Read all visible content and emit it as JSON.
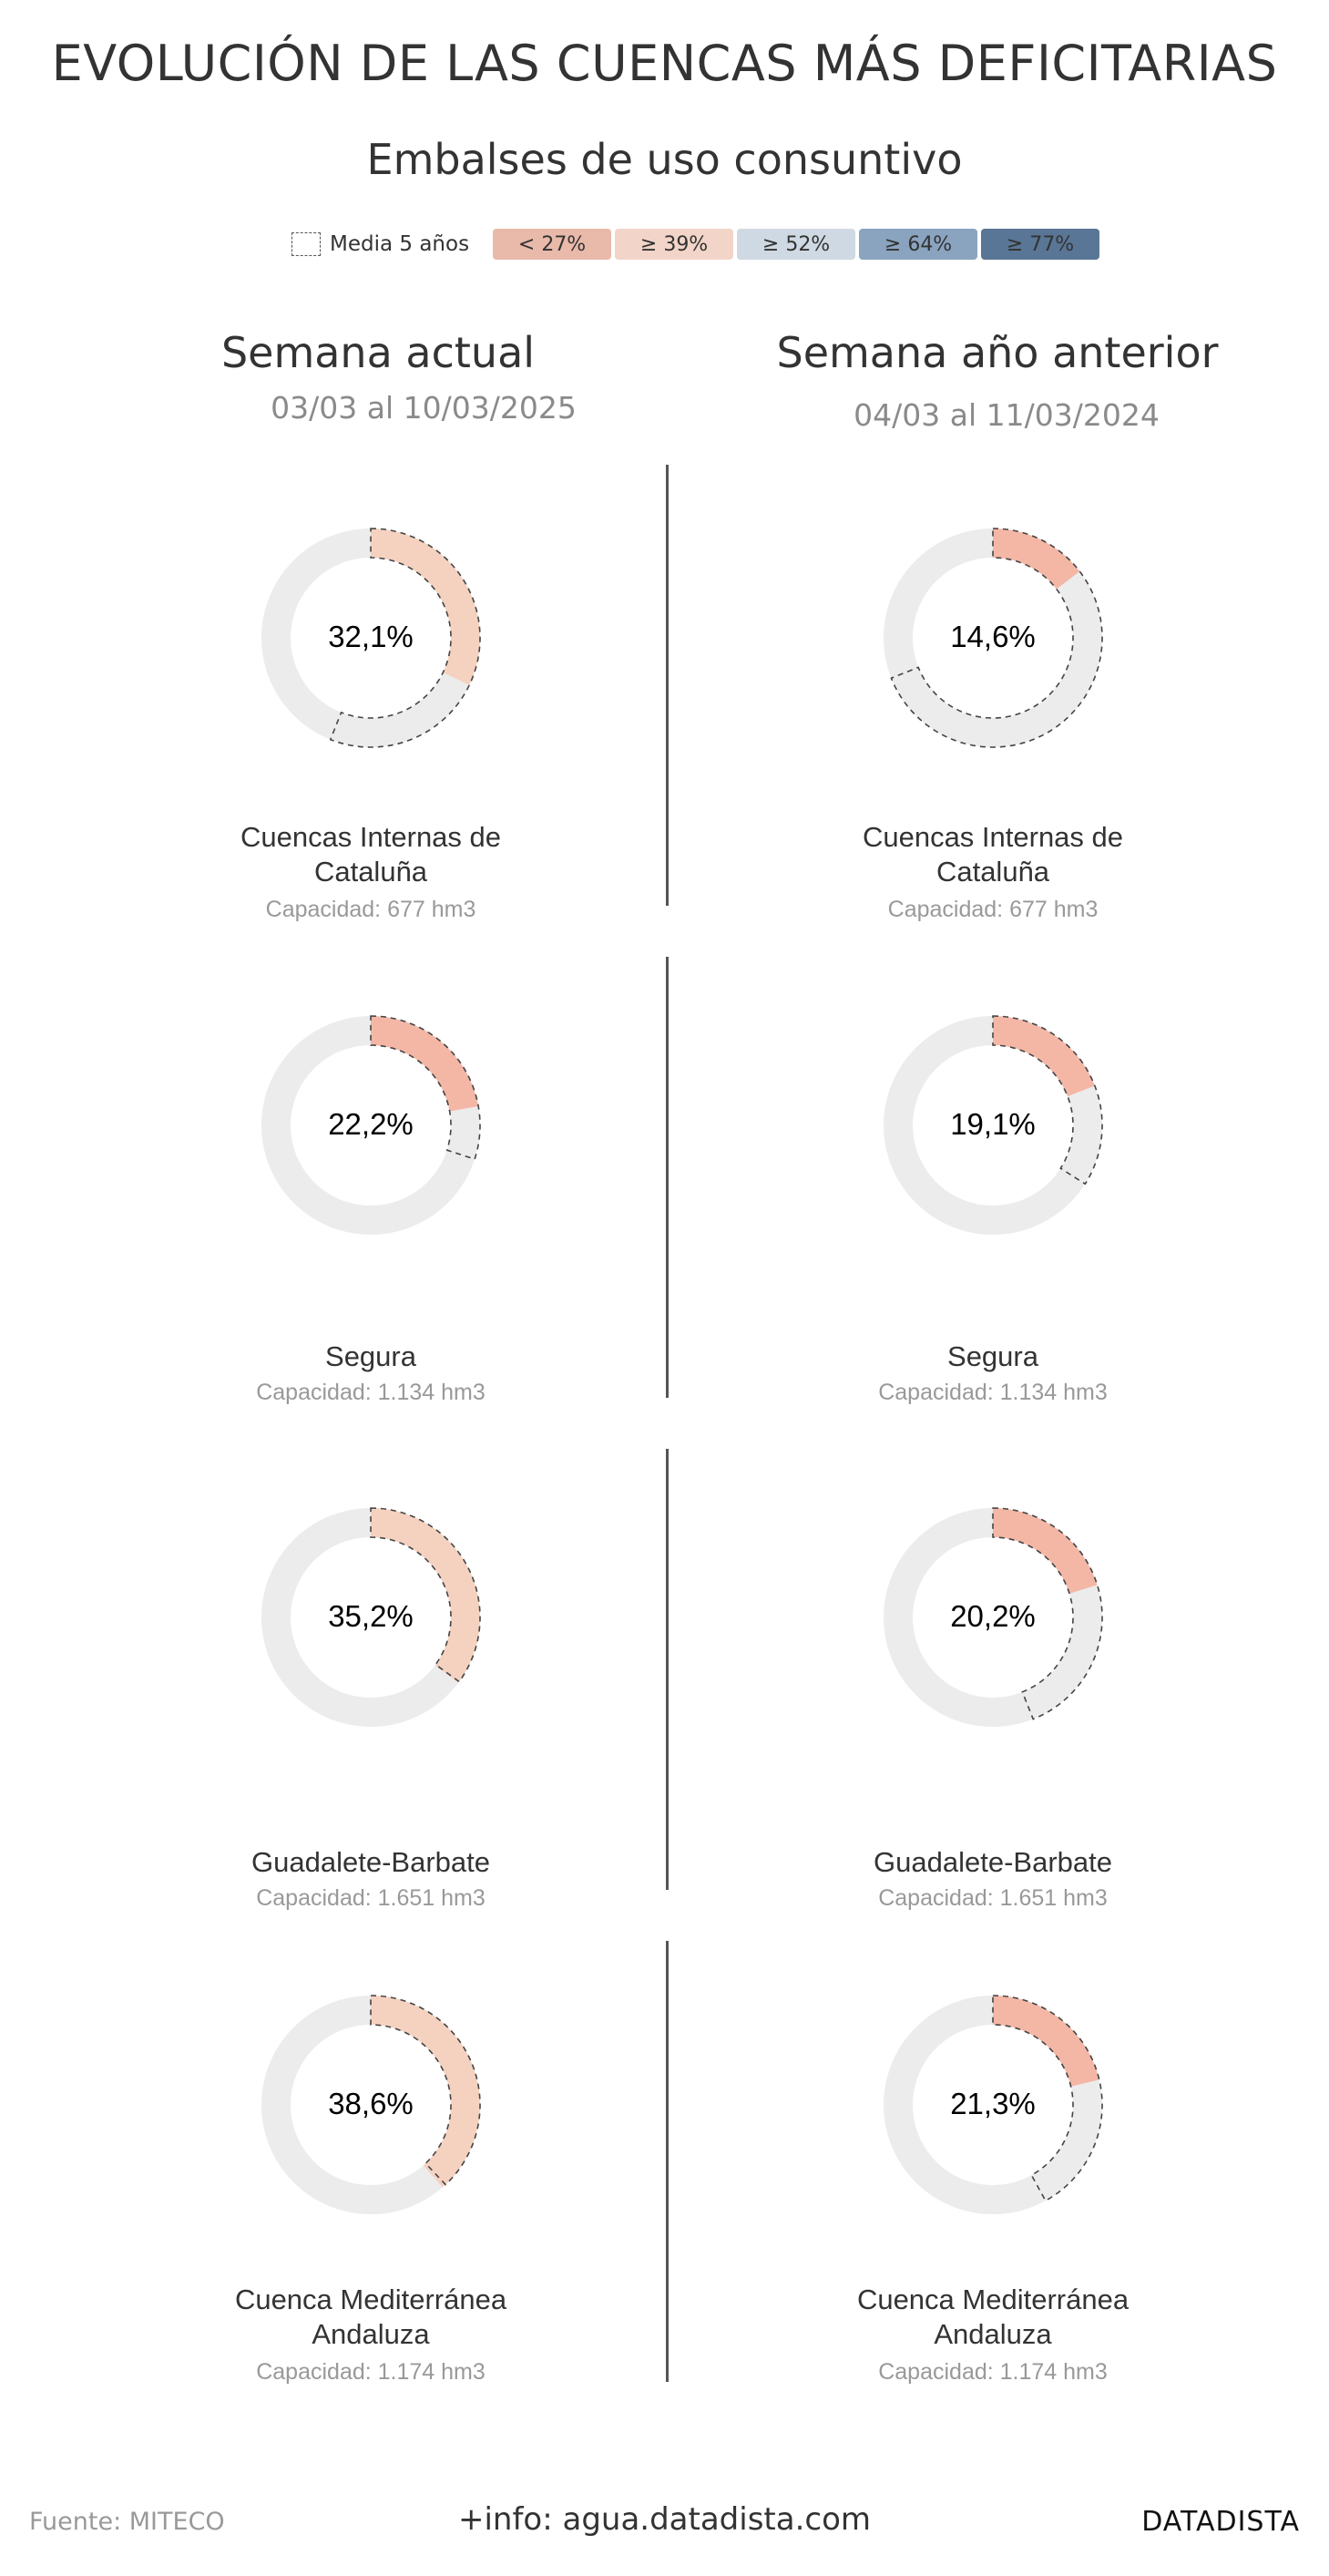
{
  "title": "EVOLUCIÓN DE LAS CUENCAS MÁS DEFICITARIAS",
  "subtitle": "Embalses de uso consuntivo",
  "legend": {
    "avg_label": "Media 5 años",
    "bins": [
      {
        "label": "< 27%",
        "color": "#e9b9aa"
      },
      {
        "label": "≥ 39%",
        "color": "#f2d5c8"
      },
      {
        "label": "≥ 52%",
        "color": "#cfd9e3"
      },
      {
        "label": "≥ 64%",
        "color": "#8aa4c0"
      },
      {
        "label": "≥ 77%",
        "color": "#5a7696"
      }
    ]
  },
  "columns": [
    {
      "heading": "Semana actual",
      "dates": "03/03 al 10/03/2025"
    },
    {
      "heading": "Semana año anterior",
      "dates": "04/03 al 11/03/2024"
    }
  ],
  "colors": {
    "track": "#ececec",
    "low": "#f4b7a6",
    "mid": "#f5d2c0",
    "avg_stroke": "#444444"
  },
  "chart_data": {
    "type": "donut",
    "value_unit": "% capacity filled",
    "series": [
      {
        "name": "Semana actual",
        "items": [
          {
            "basin": "Cuencas Internas de Cataluña",
            "value": 32.1,
            "label": "32,1%",
            "avg5": 56,
            "capacity": "Capacidad: 677 hm3"
          },
          {
            "basin": "Segura",
            "value": 22.2,
            "label": "22,2%",
            "avg5": 30,
            "capacity": "Capacidad: 1.134 hm3"
          },
          {
            "basin": "Guadalete-Barbate",
            "value": 35.2,
            "label": "35,2%",
            "avg5": 35,
            "capacity": "Capacidad: 1.651 hm3"
          },
          {
            "basin": "Cuenca Mediterránea Andaluza",
            "value": 38.6,
            "label": "38,6%",
            "avg5": 38,
            "capacity": "Capacidad: 1.174 hm3"
          }
        ]
      },
      {
        "name": "Semana año anterior",
        "items": [
          {
            "basin": "Cuencas Internas de Cataluña",
            "value": 14.6,
            "label": "14,6%",
            "avg5": 69,
            "capacity": "Capacidad: 677 hm3"
          },
          {
            "basin": "Segura",
            "value": 19.1,
            "label": "19,1%",
            "avg5": 34,
            "capacity": "Capacidad: 1.134 hm3"
          },
          {
            "basin": "Guadalete-Barbate",
            "value": 20.2,
            "label": "20,2%",
            "avg5": 44,
            "capacity": "Capacidad: 1.651 hm3"
          },
          {
            "basin": "Cuenca Mediterránea Andaluza",
            "value": 21.3,
            "label": "21,3%",
            "avg5": 42,
            "capacity": "Capacidad: 1.174 hm3"
          }
        ]
      }
    ]
  },
  "footer": {
    "source": "Fuente: MITECO",
    "info": "+info: agua.datadista.com",
    "brand": "DATADISTA"
  }
}
